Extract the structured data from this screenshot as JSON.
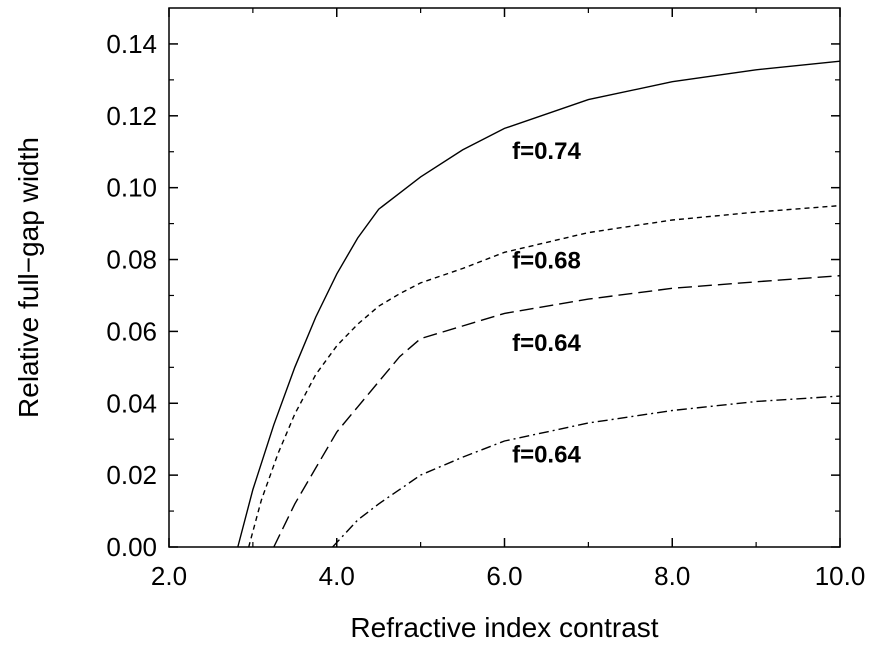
{
  "chart_data": {
    "type": "line",
    "xlabel": "Refractive index contrast",
    "ylabel": "Relative full−gap width",
    "xlim": [
      2.0,
      10.0
    ],
    "ylim": [
      0.0,
      0.15
    ],
    "x_ticks": [
      2.0,
      4.0,
      6.0,
      8.0,
      10.0
    ],
    "x_tick_labels": [
      "2.0",
      "4.0",
      "6.0",
      "8.0",
      "10.0"
    ],
    "y_ticks": [
      0.0,
      0.02,
      0.04,
      0.06,
      0.08,
      0.1,
      0.12,
      0.14
    ],
    "y_tick_labels": [
      "0.00",
      "0.02",
      "0.04",
      "0.06",
      "0.08",
      "0.10",
      "0.12",
      "0.14"
    ],
    "grid": false,
    "legend": "none",
    "series": [
      {
        "name": "f=0.74",
        "style": "solid",
        "color": "#000000",
        "label_at": [
          6.5,
          0.108
        ],
        "points": [
          [
            2.82,
            0.0
          ],
          [
            3.0,
            0.016
          ],
          [
            3.25,
            0.034
          ],
          [
            3.5,
            0.05
          ],
          [
            3.75,
            0.064
          ],
          [
            4.0,
            0.076
          ],
          [
            4.25,
            0.086
          ],
          [
            4.5,
            0.094
          ],
          [
            4.75,
            0.0985
          ],
          [
            5.0,
            0.103
          ],
          [
            5.5,
            0.1105
          ],
          [
            6.0,
            0.1165
          ],
          [
            7.0,
            0.1245
          ],
          [
            8.0,
            0.1295
          ],
          [
            9.0,
            0.1328
          ],
          [
            10.0,
            0.1352
          ]
        ]
      },
      {
        "name": "f=0.68",
        "style": "dashed-short",
        "color": "#000000",
        "label_at": [
          6.5,
          0.0775
        ],
        "points": [
          [
            2.95,
            0.0
          ],
          [
            3.1,
            0.013
          ],
          [
            3.3,
            0.026
          ],
          [
            3.5,
            0.037
          ],
          [
            3.75,
            0.048
          ],
          [
            4.0,
            0.056
          ],
          [
            4.25,
            0.062
          ],
          [
            4.5,
            0.067
          ],
          [
            4.75,
            0.0705
          ],
          [
            5.0,
            0.0735
          ],
          [
            5.5,
            0.0775
          ],
          [
            6.0,
            0.082
          ],
          [
            7.0,
            0.0875
          ],
          [
            8.0,
            0.091
          ],
          [
            9.0,
            0.0932
          ],
          [
            10.0,
            0.095
          ]
        ]
      },
      {
        "name": "f=0.64",
        "style": "dashed-long",
        "color": "#000000",
        "label_at": [
          6.5,
          0.0545
        ],
        "points": [
          [
            3.25,
            0.0
          ],
          [
            3.5,
            0.012
          ],
          [
            3.75,
            0.022
          ],
          [
            4.0,
            0.032
          ],
          [
            4.25,
            0.039
          ],
          [
            4.5,
            0.046
          ],
          [
            4.75,
            0.053
          ],
          [
            5.0,
            0.058
          ],
          [
            5.5,
            0.0615
          ],
          [
            6.0,
            0.065
          ],
          [
            7.0,
            0.069
          ],
          [
            8.0,
            0.072
          ],
          [
            9.0,
            0.0738
          ],
          [
            10.0,
            0.0755
          ]
        ]
      },
      {
        "name": "f=0.64",
        "style": "dash-dot",
        "color": "#000000",
        "label_at": [
          6.5,
          0.0235
        ],
        "points": [
          [
            3.95,
            0.0
          ],
          [
            4.25,
            0.0075
          ],
          [
            4.5,
            0.012
          ],
          [
            5.0,
            0.02
          ],
          [
            5.5,
            0.025
          ],
          [
            6.0,
            0.0295
          ],
          [
            7.0,
            0.0345
          ],
          [
            8.0,
            0.038
          ],
          [
            9.0,
            0.0405
          ],
          [
            10.0,
            0.042
          ]
        ]
      }
    ]
  }
}
